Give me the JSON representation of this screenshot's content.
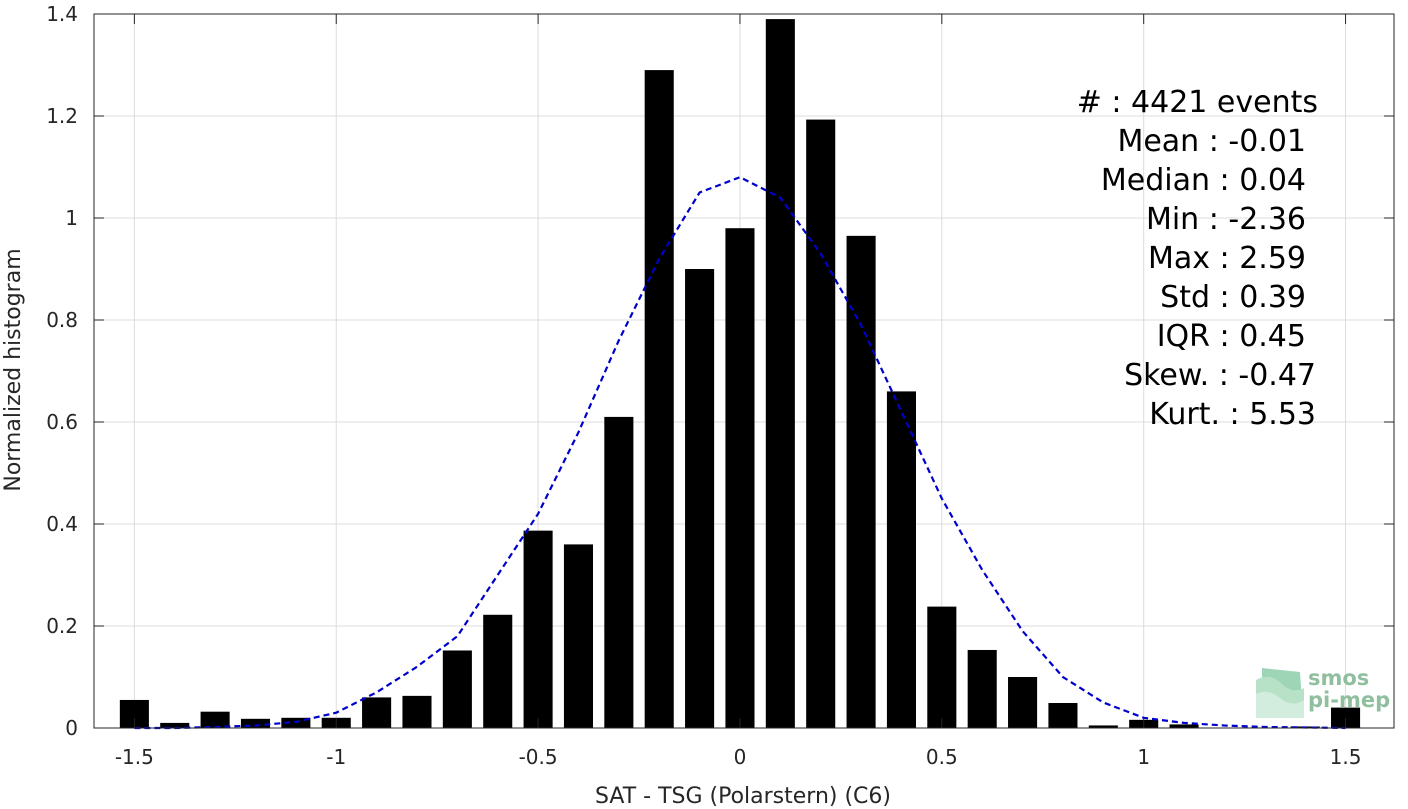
{
  "chart_data": {
    "type": "bar",
    "xlabel": "SAT - TSG (Polarstern) (C6)",
    "ylabel": "Normalized histogram",
    "xlim": [
      -1.6,
      1.62
    ],
    "ylim": [
      0,
      1.4
    ],
    "bar_width": 0.072,
    "x_ticks": [
      {
        "value": -1.5,
        "label": "-1.5"
      },
      {
        "value": -1.0,
        "label": "-1"
      },
      {
        "value": -0.5,
        "label": "-0.5"
      },
      {
        "value": 0.0,
        "label": "0"
      },
      {
        "value": 0.5,
        "label": "0.5"
      },
      {
        "value": 1.0,
        "label": "1"
      },
      {
        "value": 1.5,
        "label": "1.5"
      }
    ],
    "y_ticks": [
      {
        "value": 0,
        "label": "0"
      },
      {
        "value": 0.2,
        "label": "0.2"
      },
      {
        "value": 0.4,
        "label": "0.4"
      },
      {
        "value": 0.6,
        "label": "0.6"
      },
      {
        "value": 0.8,
        "label": "0.8"
      },
      {
        "value": 1.0,
        "label": "1"
      },
      {
        "value": 1.2,
        "label": "1.2"
      },
      {
        "value": 1.4,
        "label": "1.4"
      }
    ],
    "grid": true,
    "bar_color": "#000000",
    "bars": {
      "x": [
        -1.5,
        -1.4,
        -1.3,
        -1.2,
        -1.1,
        -1.0,
        -0.9,
        -0.8,
        -0.7,
        -0.6,
        -0.5,
        -0.4,
        -0.3,
        -0.2,
        -0.1,
        0.0,
        0.1,
        0.2,
        0.3,
        0.4,
        0.5,
        0.6,
        0.7,
        0.8,
        0.9,
        1.0,
        1.1,
        1.2,
        1.3,
        1.4,
        1.5
      ],
      "values": [
        0.055,
        0.01,
        0.032,
        0.018,
        0.02,
        0.02,
        0.06,
        0.063,
        0.152,
        0.222,
        0.387,
        0.36,
        0.61,
        1.29,
        0.9,
        0.98,
        1.39,
        1.193,
        0.965,
        0.66,
        0.238,
        0.153,
        0.1,
        0.049,
        0.005,
        0.016,
        0.007,
        0.0,
        0.0,
        0.003,
        0.04
      ]
    },
    "fit_curve": {
      "color": "#0000cc",
      "style": "dashed",
      "x": [
        -1.5,
        -1.4,
        -1.3,
        -1.2,
        -1.1,
        -1.0,
        -0.9,
        -0.8,
        -0.7,
        -0.6,
        -0.5,
        -0.4,
        -0.3,
        -0.2,
        -0.1,
        0.0,
        0.1,
        0.2,
        0.3,
        0.4,
        0.5,
        0.6,
        0.7,
        0.8,
        0.9,
        1.0,
        1.1,
        1.2,
        1.3,
        1.4,
        1.5
      ],
      "y": [
        0.0,
        0.0,
        0.002,
        0.005,
        0.012,
        0.03,
        0.07,
        0.12,
        0.18,
        0.3,
        0.42,
        0.58,
        0.76,
        0.92,
        1.05,
        1.08,
        1.04,
        0.93,
        0.79,
        0.62,
        0.45,
        0.31,
        0.19,
        0.1,
        0.05,
        0.02,
        0.01,
        0.005,
        0.002,
        0.001,
        0.0
      ]
    },
    "annotations": [
      "#  : 4421 events",
      "Mean : -0.01",
      "Median : 0.04",
      "Min : -2.36",
      "Max : 2.59",
      "Std : 0.39",
      "IQR : 0.45",
      "Skew. : -0.47",
      "Kurt. : 5.53"
    ]
  },
  "logo": {
    "line1": "smos",
    "line2": "pi-mep"
  }
}
